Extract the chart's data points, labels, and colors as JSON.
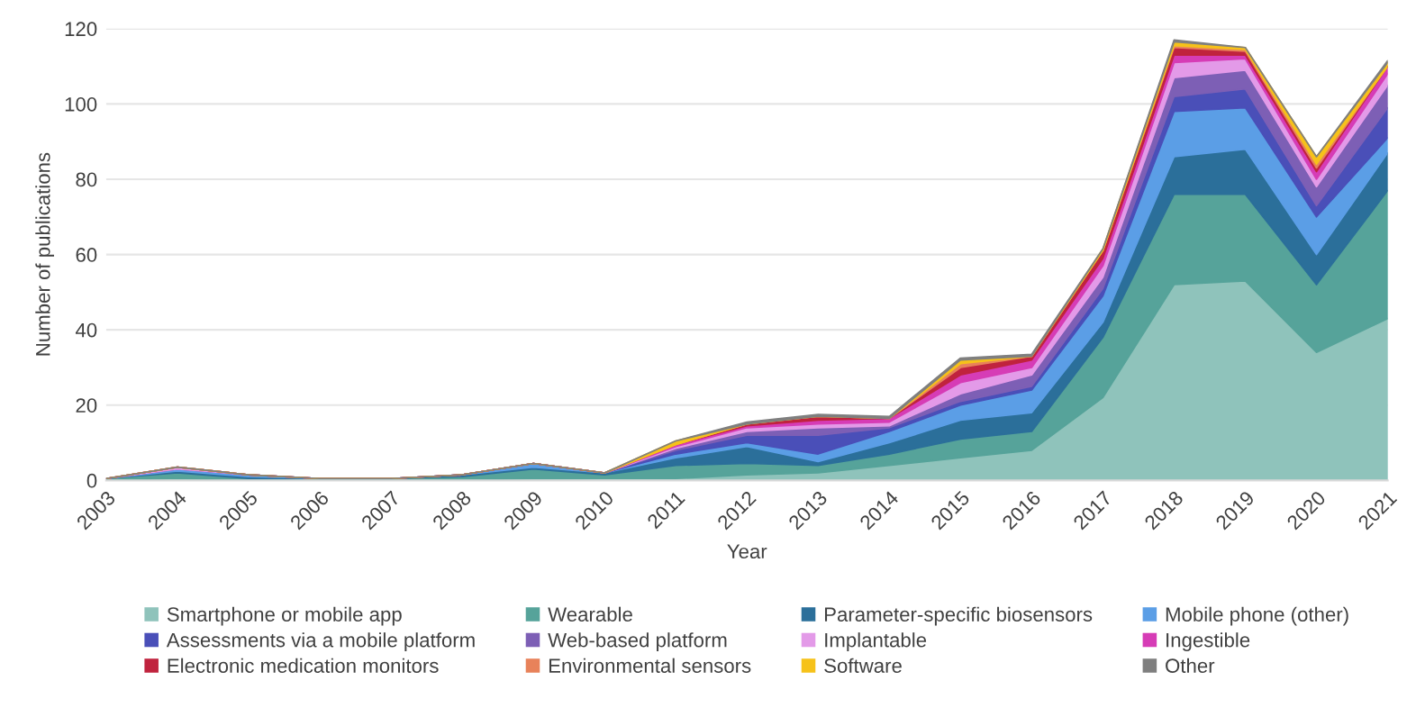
{
  "chart_data": {
    "type": "area",
    "stacked": true,
    "xlabel": "Year",
    "ylabel": "Number of publications",
    "categories": [
      "2003",
      "2004",
      "2005",
      "2006",
      "2007",
      "2008",
      "2009",
      "2010",
      "2011",
      "2012",
      "2013",
      "2014",
      "2015",
      "2016",
      "2017",
      "2018",
      "2019",
      "2020",
      "2021"
    ],
    "ylim": [
      0,
      120
    ],
    "yticks": [
      0,
      20,
      40,
      60,
      80,
      100,
      120
    ],
    "grid": "y",
    "legend": "bottom",
    "series": [
      {
        "name": "Smartphone or mobile app",
        "color": "#8fc3bb",
        "values": [
          0,
          0.5,
          0,
          0,
          0,
          0,
          0.5,
          0.5,
          0.5,
          1.5,
          2,
          4,
          6,
          8,
          22,
          52,
          53,
          34,
          43
        ]
      },
      {
        "name": "Wearable",
        "color": "#56a39a",
        "values": [
          0.5,
          1.5,
          0.5,
          0.5,
          0.5,
          1,
          2.5,
          1,
          3.5,
          3,
          2,
          3,
          5,
          5,
          16,
          24,
          23,
          18,
          34
        ]
      },
      {
        "name": "Parameter-specific biosensors",
        "color": "#2b6f9a",
        "values": [
          0,
          0.5,
          0.5,
          0,
          0,
          0.5,
          0.5,
          0.5,
          2,
          4.5,
          1,
          3,
          5,
          5,
          4,
          10,
          12,
          8,
          10
        ]
      },
      {
        "name": "Mobile phone (other)",
        "color": "#5b9ee6",
        "values": [
          0,
          0.5,
          0.5,
          0,
          0,
          0,
          1,
          0,
          1,
          1,
          2,
          3,
          4,
          6,
          7,
          12,
          11,
          10,
          4
        ]
      },
      {
        "name": "Assessments via a mobile platform",
        "color": "#4a4fb8",
        "values": [
          0,
          0,
          0,
          0,
          0,
          0,
          0,
          0,
          1,
          2,
          5,
          1,
          1,
          1,
          2,
          4,
          5,
          3,
          8
        ]
      },
      {
        "name": "Web-based platform",
        "color": "#7d5fb5",
        "values": [
          0,
          0,
          0,
          0,
          0,
          0,
          0,
          0,
          0.5,
          1,
          2,
          0.5,
          2,
          3,
          3,
          5,
          5,
          5,
          6
        ]
      },
      {
        "name": "Implantable",
        "color": "#e39ae8",
        "values": [
          0,
          0.5,
          0,
          0,
          0,
          0,
          0,
          0,
          0.5,
          1,
          1,
          1,
          3,
          2,
          3,
          4,
          3,
          2,
          3
        ]
      },
      {
        "name": "Ingestible",
        "color": "#d63cb6",
        "values": [
          0,
          0,
          0,
          0,
          0,
          0,
          0,
          0,
          0.5,
          0.5,
          1,
          1,
          2,
          2,
          2,
          2,
          1,
          2,
          2
        ]
      },
      {
        "name": "Electronic medication monitors",
        "color": "#c0233e",
        "values": [
          0,
          0,
          0,
          0,
          0,
          0,
          0,
          0,
          0,
          0.5,
          1,
          0,
          2,
          1,
          2,
          2,
          1,
          1,
          0
        ]
      },
      {
        "name": "Environmental sensors",
        "color": "#e8825a",
        "values": [
          0,
          0,
          0,
          0,
          0,
          0,
          0,
          0,
          0,
          0,
          0,
          0,
          1,
          0,
          0,
          0.5,
          0.5,
          1,
          0
        ]
      },
      {
        "name": "Software",
        "color": "#f6c21a",
        "values": [
          0,
          0,
          0,
          0,
          0,
          0,
          0,
          0,
          1,
          0,
          0,
          0,
          1,
          0,
          0.5,
          1,
          0.5,
          2,
          1
        ]
      },
      {
        "name": "Other",
        "color": "#7f7f7f",
        "values": [
          0,
          0,
          0,
          0,
          0,
          0,
          0,
          0,
          0,
          0.5,
          0.5,
          0.5,
          0.5,
          0.5,
          0,
          0.5,
          0,
          0,
          0.5
        ]
      }
    ]
  }
}
